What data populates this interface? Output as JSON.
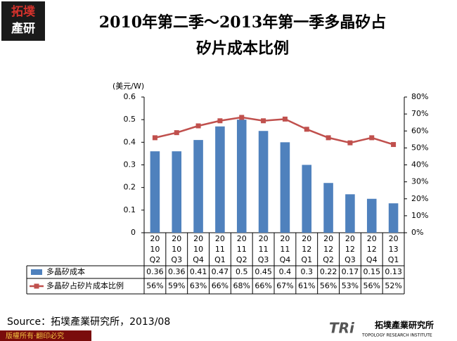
{
  "chart_data": {
    "type": "bar",
    "logo": [
      "拓墣",
      "產研"
    ],
    "title": [
      "2010年第二季～2013年第一季多晶矽占",
      "矽片成本比例"
    ],
    "y_label": "(美元/W)",
    "categories": [
      [
        "20",
        "10",
        "Q2"
      ],
      [
        "20",
        "10",
        "Q3"
      ],
      [
        "20",
        "10",
        "Q4"
      ],
      [
        "20",
        "11",
        "Q1"
      ],
      [
        "20",
        "11",
        "Q2"
      ],
      [
        "20",
        "11",
        "Q3"
      ],
      [
        "20",
        "11",
        "Q4"
      ],
      [
        "20",
        "12",
        "Q1"
      ],
      [
        "20",
        "12",
        "Q2"
      ],
      [
        "20",
        "12",
        "Q3"
      ],
      [
        "20",
        "12",
        "Q4"
      ],
      [
        "20",
        "13",
        "Q1"
      ]
    ],
    "series": [
      {
        "name": "多晶矽成本",
        "color": "#4f81bd",
        "values": [
          0.36,
          0.36,
          0.41,
          0.47,
          0.5,
          0.45,
          0.4,
          0.3,
          0.22,
          0.17,
          0.15,
          0.13
        ]
      },
      {
        "name": "多晶矽占矽片成本比例",
        "color": "#c0504d",
        "type": "line",
        "axis": "y2",
        "values": [
          56,
          59,
          63,
          66,
          68,
          66,
          67,
          61,
          56,
          53,
          56,
          52
        ],
        "value_labels": [
          "56%",
          "59%",
          "63%",
          "66%",
          "68%",
          "66%",
          "67%",
          "61%",
          "56%",
          "53%",
          "56%",
          "52%"
        ]
      }
    ],
    "ylim": [
      0,
      0.6
    ],
    "yticks": [
      0,
      0.1,
      0.2,
      0.3,
      0.4,
      0.5,
      0.6
    ],
    "y2lim": [
      0,
      80
    ],
    "y2ticks": [
      {
        "value": 0,
        "label": "0%"
      },
      {
        "value": 10,
        "label": "10%"
      },
      {
        "value": 20,
        "label": "20%"
      },
      {
        "value": 30,
        "label": "30%"
      },
      {
        "value": 40,
        "label": "40%"
      },
      {
        "value": 50,
        "label": "50%"
      },
      {
        "value": 60,
        "label": "60%"
      },
      {
        "value": 70,
        "label": "70%"
      },
      {
        "value": 80,
        "label": "80%"
      }
    ],
    "source": "Source：拓墣產業研究所，2013/08",
    "copyright": "版權所有‧翻印必究",
    "brand": [
      "TRi",
      "拓墣產業研究所",
      "TOPOLOGY RESEARCH INSTITUTE"
    ]
  }
}
